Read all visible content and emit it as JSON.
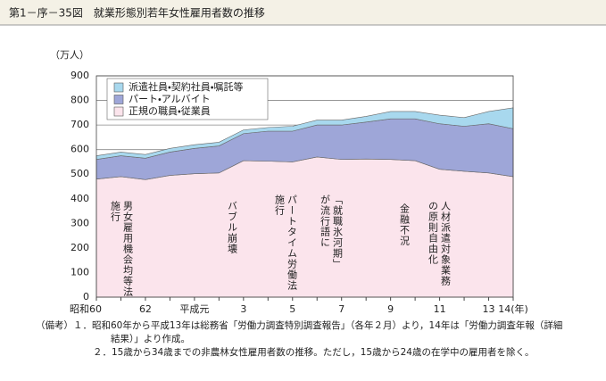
{
  "chart_data": {
    "type": "stacked-area",
    "title": "第1－序－35図　就業形態別若年女性雇用者数の推移",
    "y_label": "（万人）",
    "categories": [
      "昭和60",
      null,
      "62",
      null,
      "平成元",
      null,
      "3",
      null,
      "5",
      null,
      "7",
      null,
      "9",
      null,
      "11",
      null,
      "13",
      "14(年)"
    ],
    "series": [
      {
        "name": "正規の職員・従業員",
        "color": "#fbe4ec",
        "values": [
          480,
          490,
          478,
          495,
          502,
          505,
          555,
          553,
          550,
          570,
          560,
          562,
          560,
          555,
          520,
          512,
          505,
          490
        ]
      },
      {
        "name": "パート・アルバイト",
        "color": "#9ea6d8",
        "values": [
          80,
          85,
          87,
          95,
          103,
          110,
          110,
          122,
          125,
          130,
          140,
          150,
          165,
          170,
          185,
          183,
          200,
          195
        ]
      },
      {
        "name": "派遣社員・契約社員・嘱託等",
        "color": "#a8d8ee",
        "values": [
          15,
          15,
          15,
          15,
          15,
          15,
          15,
          15,
          20,
          20,
          20,
          23,
          30,
          30,
          35,
          35,
          50,
          85
        ]
      }
    ],
    "ylim": [
      0,
      900
    ],
    "yticks": [
      0,
      100,
      200,
      300,
      400,
      500,
      600,
      700,
      800,
      900
    ],
    "grid": true,
    "annotations": [
      {
        "lines": [
          "男女雇用機会均等法",
          "施行"
        ]
      },
      {
        "lines": [
          "バブル崩壊"
        ]
      },
      {
        "lines": [
          "パートタイム労働法",
          "施行"
        ]
      },
      {
        "lines": [
          "「就職氷河期」",
          "が流行語に"
        ]
      },
      {
        "lines": [
          "金融不況"
        ]
      },
      {
        "lines": [
          "人材派遣対象業務",
          "の原則自由化"
        ]
      }
    ],
    "notes": [
      "（備考）１．昭和60年から平成13年は総務省「労働力調査特別調査報告」（各年２月）より，14年は「労働力調査年報（詳細結果）」より作成。",
      "２．15歳から34歳までの非農林女性雇用者数の推移。ただし，15歳から24歳の在学中の雇用者を除く。"
    ]
  }
}
